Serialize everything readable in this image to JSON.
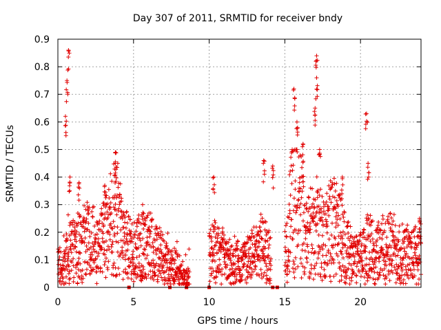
{
  "chart_data": {
    "type": "scatter",
    "title": "Day 307 of 2011, SRMTID for receiver bndy",
    "xlabel": "GPS time / hours",
    "ylabel": "SRMTID / TECUs",
    "xlim": [
      0,
      24
    ],
    "ylim": [
      0,
      0.9
    ],
    "xticks": [
      "0",
      "5",
      "10",
      "15",
      "20"
    ],
    "xtick_values": [
      0,
      5,
      10,
      15,
      20
    ],
    "yticks": [
      "0",
      "0.1",
      "0.2",
      "0.3",
      "0.4",
      "0.5",
      "0.6",
      "0.7",
      "0.8",
      "0.9"
    ],
    "ytick_values": [
      0,
      0.1,
      0.2,
      0.3,
      0.4,
      0.5,
      0.6,
      0.7,
      0.8,
      0.9
    ],
    "grid": true,
    "marker": "+",
    "color": "#e00000",
    "series": [
      {
        "name": "SRMTID",
        "envelope": [
          {
            "x": 0.0,
            "y": 0.1
          },
          {
            "x": 0.3,
            "y": 0.06
          },
          {
            "x": 0.5,
            "y": 0.09
          },
          {
            "x": 0.7,
            "y": 0.15
          },
          {
            "x": 1.0,
            "y": 0.13
          },
          {
            "x": 1.5,
            "y": 0.15
          },
          {
            "x": 2.0,
            "y": 0.17
          },
          {
            "x": 2.5,
            "y": 0.16
          },
          {
            "x": 3.0,
            "y": 0.18
          },
          {
            "x": 3.5,
            "y": 0.22
          },
          {
            "x": 3.9,
            "y": 0.27
          },
          {
            "x": 4.2,
            "y": 0.2
          },
          {
            "x": 4.5,
            "y": 0.16
          },
          {
            "x": 5.0,
            "y": 0.13
          },
          {
            "x": 5.5,
            "y": 0.14
          },
          {
            "x": 6.0,
            "y": 0.15
          },
          {
            "x": 6.5,
            "y": 0.12
          },
          {
            "x": 7.0,
            "y": 0.1
          },
          {
            "x": 7.5,
            "y": 0.07
          },
          {
            "x": 8.0,
            "y": 0.06
          },
          {
            "x": 8.5,
            "y": 0.03
          },
          {
            "x": 10.2,
            "y": 0.12
          },
          {
            "x": 10.5,
            "y": 0.14
          },
          {
            "x": 11.0,
            "y": 0.1
          },
          {
            "x": 11.5,
            "y": 0.08
          },
          {
            "x": 12.0,
            "y": 0.09
          },
          {
            "x": 12.5,
            "y": 0.1
          },
          {
            "x": 13.0,
            "y": 0.12
          },
          {
            "x": 13.5,
            "y": 0.15
          },
          {
            "x": 14.0,
            "y": 0.1
          },
          {
            "x": 14.5,
            "y": 0.06
          },
          {
            "x": 15.0,
            "y": 0.12
          },
          {
            "x": 15.5,
            "y": 0.3
          },
          {
            "x": 16.0,
            "y": 0.28
          },
          {
            "x": 16.5,
            "y": 0.18
          },
          {
            "x": 17.0,
            "y": 0.22
          },
          {
            "x": 17.5,
            "y": 0.18
          },
          {
            "x": 18.0,
            "y": 0.22
          },
          {
            "x": 18.5,
            "y": 0.2
          },
          {
            "x": 19.0,
            "y": 0.15
          },
          {
            "x": 19.5,
            "y": 0.1
          },
          {
            "x": 20.0,
            "y": 0.1
          },
          {
            "x": 20.5,
            "y": 0.15
          },
          {
            "x": 21.0,
            "y": 0.12
          },
          {
            "x": 21.5,
            "y": 0.14
          },
          {
            "x": 22.0,
            "y": 0.15
          },
          {
            "x": 22.5,
            "y": 0.13
          },
          {
            "x": 23.0,
            "y": 0.12
          },
          {
            "x": 23.5,
            "y": 0.12
          },
          {
            "x": 24.0,
            "y": 0.12
          }
        ],
        "gaps": [
          [
            8.7,
            10.0
          ],
          [
            14.1,
            15.0
          ]
        ],
        "peaks": [
          {
            "x": 0.7,
            "y": 0.86
          },
          {
            "x": 0.6,
            "y": 0.75
          },
          {
            "x": 0.5,
            "y": 0.62
          },
          {
            "x": 0.8,
            "y": 0.4
          },
          {
            "x": 1.4,
            "y": 0.38
          },
          {
            "x": 3.1,
            "y": 0.37
          },
          {
            "x": 3.8,
            "y": 0.49
          },
          {
            "x": 3.8,
            "y": 0.45
          },
          {
            "x": 5.6,
            "y": 0.3
          },
          {
            "x": 10.3,
            "y": 0.4
          },
          {
            "x": 13.6,
            "y": 0.46
          },
          {
            "x": 14.2,
            "y": 0.44
          },
          {
            "x": 15.6,
            "y": 0.72
          },
          {
            "x": 15.8,
            "y": 0.6
          },
          {
            "x": 16.2,
            "y": 0.52
          },
          {
            "x": 17.1,
            "y": 0.84
          },
          {
            "x": 17.1,
            "y": 0.76
          },
          {
            "x": 17.0,
            "y": 0.65
          },
          {
            "x": 17.3,
            "y": 0.5
          },
          {
            "x": 20.4,
            "y": 0.63
          },
          {
            "x": 20.5,
            "y": 0.45
          },
          {
            "x": 18.8,
            "y": 0.4
          },
          {
            "x": 23.9,
            "y": 0.25
          }
        ],
        "zero_points": [
          4.7,
          7.4,
          8.5,
          10.0,
          14.2,
          14.5
        ]
      }
    ]
  }
}
